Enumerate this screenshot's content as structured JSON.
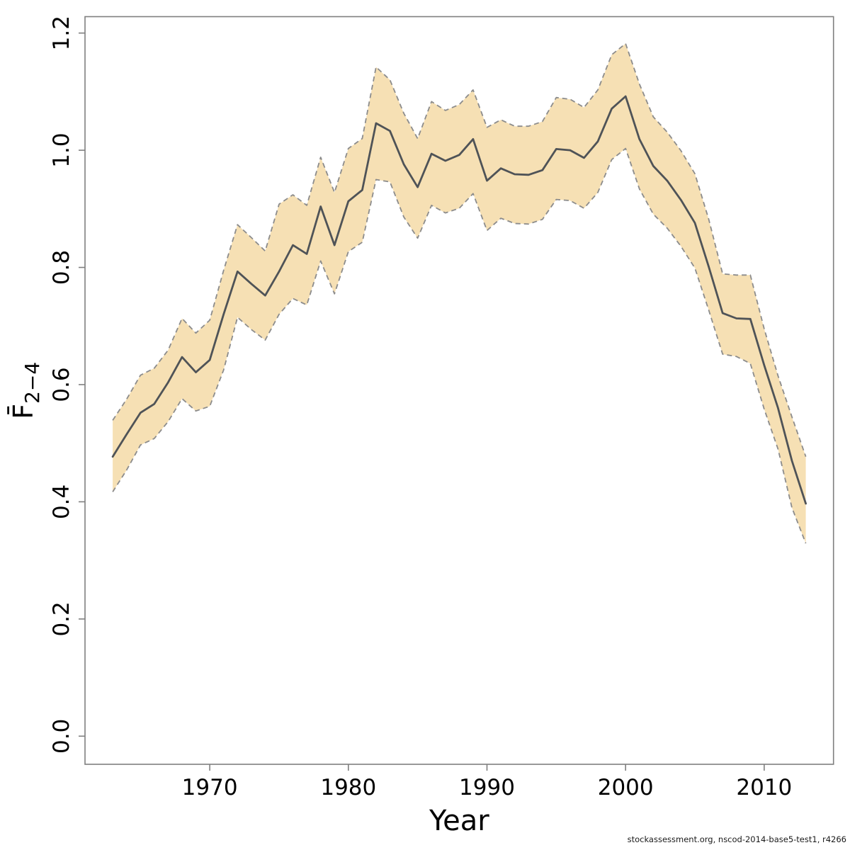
{
  "figure": {
    "background": "#ffffff"
  },
  "footer": {
    "text": "stockassessment.org, nscod-2014-base5-test1, r4266"
  },
  "chart_data": {
    "type": "line",
    "title": "",
    "xlabel": "Year",
    "ylabel_main": "F̄",
    "ylabel_sub": "2−4",
    "x": [
      1963,
      1964,
      1965,
      1966,
      1967,
      1968,
      1969,
      1970,
      1971,
      1972,
      1973,
      1974,
      1975,
      1976,
      1977,
      1978,
      1979,
      1980,
      1981,
      1982,
      1983,
      1984,
      1985,
      1986,
      1987,
      1988,
      1989,
      1990,
      1991,
      1992,
      1993,
      1994,
      1995,
      1996,
      1997,
      1998,
      1999,
      2000,
      2001,
      2002,
      2003,
      2004,
      2005,
      2006,
      2007,
      2008,
      2009,
      2010,
      2011,
      2012,
      2013
    ],
    "series": [
      {
        "name": "Fbar(2-4) estimate",
        "role": "center",
        "values": [
          0.477,
          0.515,
          0.552,
          0.567,
          0.604,
          0.647,
          0.621,
          0.642,
          0.72,
          0.793,
          0.772,
          0.752,
          0.793,
          0.838,
          0.823,
          0.904,
          0.838,
          0.913,
          0.932,
          1.046,
          1.033,
          0.976,
          0.937,
          0.994,
          0.982,
          0.992,
          1.019,
          0.948,
          0.969,
          0.959,
          0.958,
          0.966,
          1.002,
          1.0,
          0.987,
          1.015,
          1.071,
          1.092,
          1.019,
          0.973,
          0.948,
          0.915,
          0.876,
          0.801,
          0.722,
          0.713,
          0.712,
          0.633,
          0.56,
          0.47,
          0.397
        ]
      },
      {
        "name": "upper 95% confidence bound",
        "role": "upper",
        "values": [
          0.539,
          0.575,
          0.616,
          0.628,
          0.659,
          0.713,
          0.688,
          0.71,
          0.795,
          0.873,
          0.851,
          0.828,
          0.908,
          0.924,
          0.906,
          0.988,
          0.928,
          1.003,
          1.02,
          1.142,
          1.12,
          1.063,
          1.02,
          1.083,
          1.068,
          1.078,
          1.103,
          1.039,
          1.052,
          1.041,
          1.041,
          1.049,
          1.09,
          1.087,
          1.073,
          1.103,
          1.163,
          1.182,
          1.113,
          1.057,
          1.031,
          0.999,
          0.96,
          0.882,
          0.789,
          0.787,
          0.787,
          0.695,
          0.615,
          0.545,
          0.477
        ]
      },
      {
        "name": "lower 95% confidence bound",
        "role": "lower",
        "values": [
          0.417,
          0.454,
          0.497,
          0.508,
          0.537,
          0.576,
          0.555,
          0.563,
          0.625,
          0.715,
          0.694,
          0.676,
          0.72,
          0.747,
          0.736,
          0.811,
          0.755,
          0.827,
          0.843,
          0.95,
          0.946,
          0.886,
          0.85,
          0.906,
          0.893,
          0.901,
          0.926,
          0.863,
          0.884,
          0.875,
          0.874,
          0.882,
          0.916,
          0.914,
          0.901,
          0.928,
          0.984,
          1.003,
          0.934,
          0.891,
          0.867,
          0.836,
          0.799,
          0.727,
          0.652,
          0.648,
          0.636,
          0.558,
          0.49,
          0.39,
          0.329
        ]
      }
    ],
    "xticks": [
      1970,
      1980,
      1990,
      2000,
      2010
    ],
    "yticks": [
      0.0,
      0.2,
      0.4,
      0.6,
      0.8,
      1.0,
      1.2
    ],
    "ytick_decimals": 1,
    "xlim": [
      1961.0,
      2015.0
    ],
    "ylim": [
      -0.048,
      1.228
    ],
    "grid": false,
    "legend": "none",
    "colors": {
      "band_fill": "#f6e0b4",
      "band_edge": "#8c8c8c",
      "center_line": "#4f5357",
      "axis_box": "#7f7f7f",
      "tick_label": "#000000",
      "axis_label": "#000000"
    }
  }
}
